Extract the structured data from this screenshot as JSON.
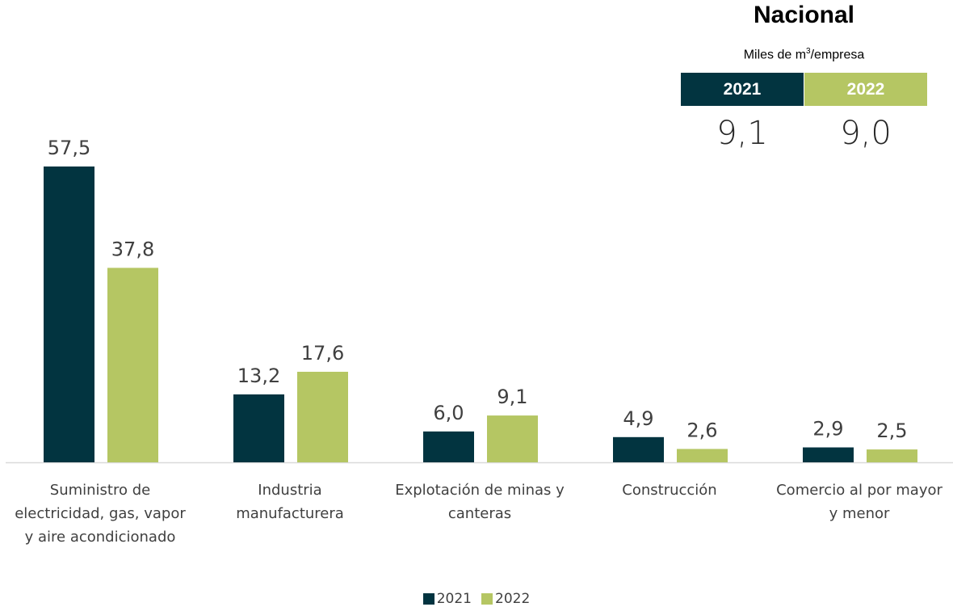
{
  "colors": {
    "series_2021": "#023440",
    "series_2022": "#b5c663",
    "axis": "#d9d9d9",
    "text": "#404040"
  },
  "nacional": {
    "title": "Nacional",
    "unit_prefix": "Miles de m",
    "unit_superscript": "3",
    "unit_suffix": "/empresa",
    "years": [
      "2021",
      "2022"
    ],
    "values": [
      "9,1",
      "9,0"
    ]
  },
  "chart_data": {
    "type": "bar",
    "categories": [
      "Suministro de electricidad, gas, vapor y aire acondicionado",
      "Industria manufacturera",
      "Explotación de minas y canteras",
      "Construcción",
      "Comercio al por mayor y menor"
    ],
    "category_lines": [
      [
        "Suministro de",
        "electricidad, gas, vapor",
        "y aire acondicionado"
      ],
      [
        "Industria",
        "manufacturera"
      ],
      [
        "Explotación de minas y",
        "canteras"
      ],
      [
        "Construcción"
      ],
      [
        "Comercio al por mayor",
        "y menor"
      ]
    ],
    "series": [
      {
        "name": "2021",
        "values": [
          57.5,
          13.2,
          6.0,
          4.9,
          2.9
        ],
        "labels": [
          "57,5",
          "13,2",
          "6,0",
          "4,9",
          "2,9"
        ]
      },
      {
        "name": "2022",
        "values": [
          37.8,
          17.6,
          9.1,
          2.6,
          2.5
        ],
        "labels": [
          "37,8",
          "17,6",
          "9,1",
          "2,6",
          "2,5"
        ]
      }
    ],
    "title": "",
    "xlabel": "",
    "ylabel": "",
    "ylim": [
      0,
      57.5
    ],
    "grid": false,
    "legend_position": "bottom"
  }
}
